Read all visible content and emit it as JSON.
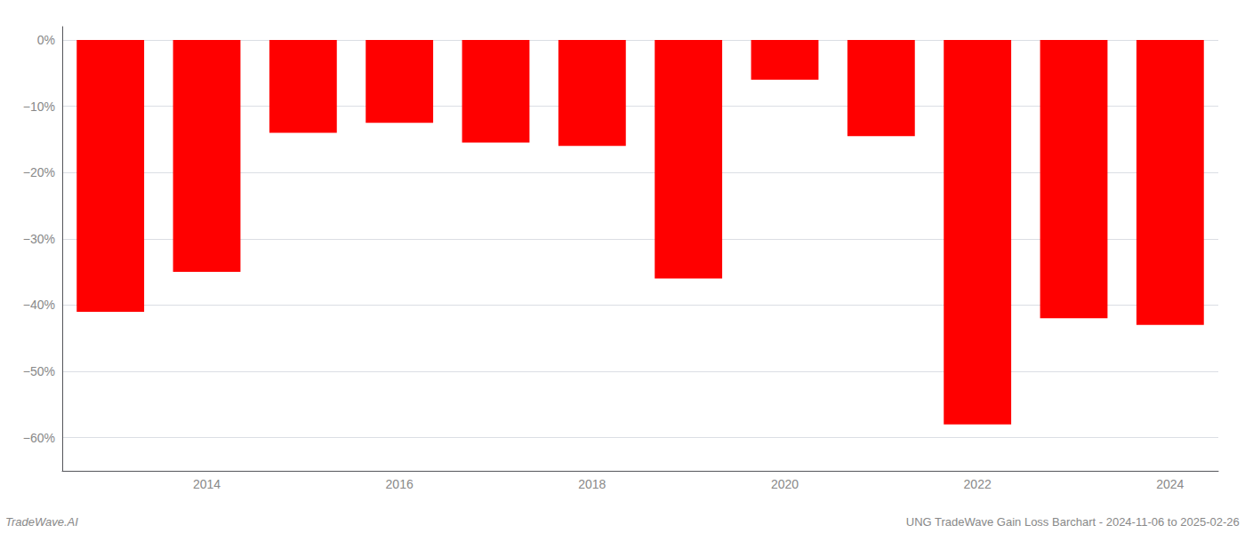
{
  "chart_data": {
    "type": "bar",
    "categories": [
      null,
      "2014",
      null,
      "2016",
      null,
      "2018",
      null,
      "2020",
      null,
      "2022",
      null,
      "2024"
    ],
    "values": [
      -41.0,
      -35.0,
      -14.0,
      -12.5,
      -15.5,
      -16.0,
      -36.0,
      -6.0,
      -14.5,
      -58.0,
      -42.0,
      -43.0
    ],
    "color": "#ff0000",
    "ylim": [
      -65,
      2
    ],
    "yticks": [
      {
        "value": 0,
        "label": "0%"
      },
      {
        "value": -10,
        "label": "−10%"
      },
      {
        "value": -20,
        "label": "−20%"
      },
      {
        "value": -30,
        "label": "−30%"
      },
      {
        "value": -40,
        "label": "−40%"
      },
      {
        "value": -50,
        "label": "−50%"
      },
      {
        "value": -60,
        "label": "−60%"
      }
    ],
    "grid": true,
    "annotations": [
      "TradeWave.AI",
      "UNG TradeWave Gain Loss Barchart - 2024-11-06 to 2025-02-26"
    ]
  }
}
